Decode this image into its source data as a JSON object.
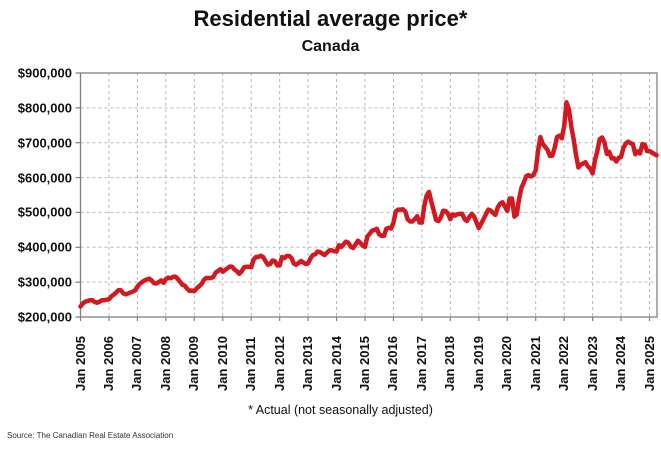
{
  "chart_data": {
    "type": "line",
    "title": "Residential average price*",
    "subtitle": "Canada",
    "footnote": "* Actual (not seasonally adjusted)",
    "source": "Source: The Canadian Real Estate Association",
    "grid": "dashed-both-axes",
    "legend": "none",
    "ylim": [
      200000,
      900000
    ],
    "y_tick_labels": [
      "$900,000",
      "$800,000",
      "$700,000",
      "$600,000",
      "$500,000",
      "$400,000",
      "$300,000",
      "$200,000"
    ],
    "x_tick_labels": [
      "Jan 2005",
      "Jan 2006",
      "Jan 2007",
      "Jan 2008",
      "Jan 2009",
      "Jan 2010",
      "Jan 2011",
      "Jan 2012",
      "Jan 2013",
      "Jan 2014",
      "Jan 2015",
      "Jan 2016",
      "Jan 2017",
      "Jan 2018",
      "Jan 2019",
      "Jan 2020",
      "Jan 2021",
      "Jan 2022",
      "Jan 2023",
      "Jan 2024",
      "Jan 2025"
    ],
    "x_start": "Jan 2005",
    "x_end": "Apr 2025",
    "x_frequency": "monthly",
    "line_color": "#d2191f",
    "grid_color": "#b7b7b7",
    "axis_color": "#7f7f7f",
    "series": [
      {
        "name": "Residential average price (CAD)",
        "units": "thousands of dollars",
        "values_k": [
          230,
          239,
          244,
          246,
          248,
          248,
          243,
          241,
          244,
          248,
          248,
          250,
          251,
          259,
          264,
          270,
          277,
          277,
          268,
          265,
          267,
          270,
          273,
          276,
          287,
          295,
          300,
          305,
          308,
          310,
          305,
          297,
          296,
          300,
          305,
          298,
          309,
          313,
          311,
          315,
          316,
          310,
          301,
          292,
          290,
          281,
          275,
          276,
          274,
          282,
          288,
          294,
          306,
          312,
          312,
          312,
          315,
          327,
          332,
          337,
          330,
          335,
          340,
          345,
          344,
          336,
          331,
          324,
          331,
          343,
          344,
          344,
          343,
          365,
          372,
          372,
          376,
          372,
          361,
          350,
          352,
          362,
          360,
          348,
          348,
          372,
          369,
          375,
          375,
          369,
          353,
          350,
          355,
          361,
          356,
          352,
          354,
          368,
          378,
          380,
          388,
          386,
          382,
          378,
          385,
          391,
          391,
          389,
          388,
          406,
          401,
          409,
          416,
          413,
          401,
          398,
          408,
          419,
          413,
          405,
          401,
          431,
          439,
          448,
          450,
          453,
          437,
          433,
          433,
          453,
          456,
          454,
          470,
          503,
          508,
          508,
          509,
          503,
          480,
          474,
          474,
          481,
          489,
          471,
          471,
          519,
          548,
          559,
          530,
          504,
          478,
          475,
          487,
          505,
          504,
          496,
          481,
          494,
          491,
          495,
          496,
          496,
          481,
          475,
          487,
          496,
          488,
          472,
          455,
          468,
          481,
          495,
          508,
          505,
          499,
          493,
          515,
          525,
          529,
          517,
          504,
          540,
          540,
          488,
          494,
          539,
          571,
          586,
          604,
          607,
          603,
          607,
          621,
          678,
          716,
          696,
          688,
          679,
          662,
          663,
          686,
          716,
          720,
          713,
          748,
          816,
          796,
          746,
          711,
          665,
          629,
          637,
          640,
          644,
          632,
          626,
          612,
          650,
          676,
          710,
          715,
          701,
          668,
          674,
          655,
          656,
          646,
          657,
          659,
          685,
          698,
          703,
          699,
          696,
          667,
          675,
          669,
          696,
          694,
          676,
          676,
          672,
          668,
          664
        ]
      }
    ]
  }
}
